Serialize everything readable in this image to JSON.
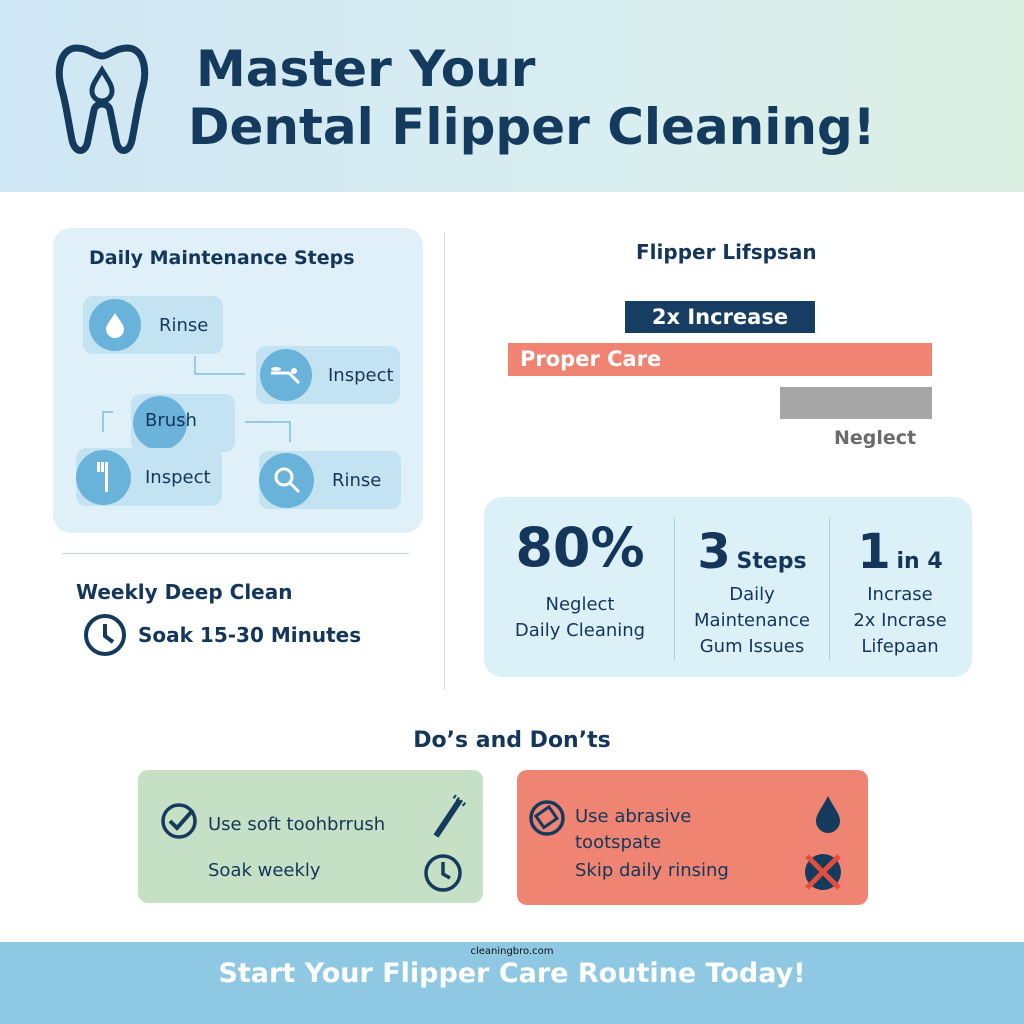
{
  "header": {
    "title_line1": "Master Your",
    "title_line2": "Dental Flipper Cleaning!",
    "logo_icon": "tooth-drop-icon"
  },
  "daily": {
    "title": "Daily Maintenance Steps",
    "steps": [
      {
        "label": "Rinse",
        "icon": "water-drop-icon"
      },
      {
        "label": "Inspect",
        "icon": "toothbrush-paste-icon"
      },
      {
        "label": "Brush",
        "icon": "circle"
      },
      {
        "label": "Inspect",
        "icon": "toothbrush-icon"
      },
      {
        "label": "Rinse",
        "icon": "magnifier-icon"
      }
    ]
  },
  "weekly": {
    "title": "Weekly Deep Clean",
    "item": "Soak 15-30 Minutes",
    "icon": "clock-icon"
  },
  "lifespan": {
    "title": "Flipper Lifspsan",
    "badge": "2x Increase",
    "bars": [
      {
        "label": "Proper Care",
        "color": "#f08372"
      },
      {
        "label": "Neglect",
        "color": "#a6a6a6"
      }
    ]
  },
  "stats": [
    {
      "big": "80%",
      "small": "",
      "lines": [
        "Neglect",
        "Daily Cleaning"
      ]
    },
    {
      "big": "3",
      "small": "Steps",
      "lines": [
        "Daily",
        "Maintenance",
        "Gum Issues"
      ]
    },
    {
      "big": "1",
      "small": "in 4",
      "lines": [
        "Incrase",
        "2x Incrase",
        "Lifepaan"
      ]
    }
  ],
  "dos": {
    "title": "Do’s and Don’ts",
    "do_items": [
      "Use soft toohbrrush",
      "Soak weekly"
    ],
    "dont_items": [
      "Use abrasive tootspate",
      "Skip daily rinsing"
    ],
    "colors": {
      "do": "#c5e0c4",
      "dont": "#ef8472"
    }
  },
  "footer": {
    "site": "cleaningbro.com",
    "cta": "Start Your Flipper Care Routine Today!"
  }
}
